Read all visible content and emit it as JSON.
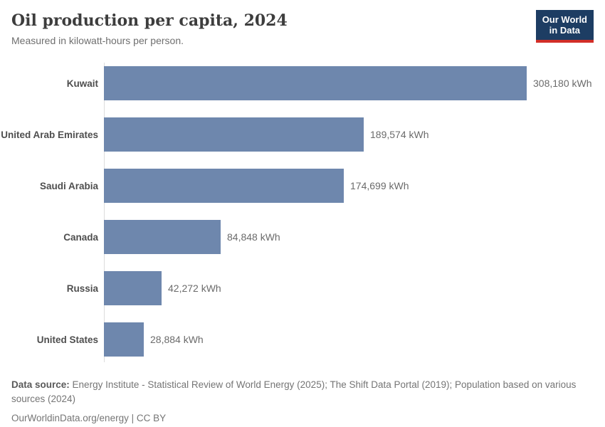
{
  "header": {
    "title": "Oil production per capita, 2024",
    "subtitle": "Measured in kilowatt-hours per person.",
    "logo": {
      "line1": "Our World",
      "line2": "in Data"
    }
  },
  "chart_data": {
    "type": "bar",
    "orientation": "horizontal",
    "title": "Oil production per capita, 2024",
    "subtitle": "Measured in kilowatt-hours per person.",
    "unit": "kWh",
    "categories": [
      "Kuwait",
      "United Arab Emirates",
      "Saudi Arabia",
      "Canada",
      "Russia",
      "United States"
    ],
    "values": [
      308180,
      189574,
      174699,
      84848,
      42272,
      28884
    ],
    "value_labels": [
      "308,180 kWh",
      "189,574 kWh",
      "174,699 kWh",
      "84,848 kWh",
      "42,272 kWh",
      "28,884 kWh"
    ],
    "xlim": [
      0,
      308180
    ],
    "grid": false,
    "legend": "none",
    "bar_color": "#6e87ad"
  },
  "footer": {
    "data_source_label": "Data source:",
    "data_source_text": "Energy Institute - Statistical Review of World Energy (2025); The Shift Data Portal (2019); Population based on various sources (2024)",
    "link": "OurWorldinData.org/energy",
    "separator": " | ",
    "license": "CC BY"
  },
  "colors": {
    "bar": "#6e87ad",
    "axis_line": "#dcdcdc",
    "logo_bg": "#1d3d63",
    "logo_accent": "#d22e27"
  }
}
